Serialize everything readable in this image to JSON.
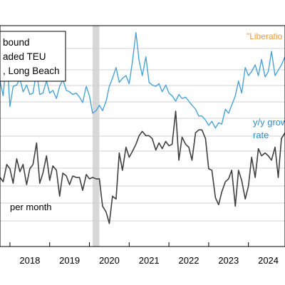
{
  "chart_data": {
    "type": "line",
    "legend_lines": [
      "bound",
      "aded TEU",
      ", Long Beach"
    ],
    "legend_placement": "top-left",
    "annotations": {
      "liberation": "\"Liberatio",
      "growth_line1": "y/y grow",
      "growth_line2": "rate",
      "per_month": "per month"
    },
    "x_ticks": [
      "2018",
      "2019",
      "2020",
      "2021",
      "2022",
      "2023",
      "2024"
    ],
    "xlim": [
      2017.75,
      2024.92
    ],
    "recession_shading": [
      2020.08,
      2020.25
    ],
    "grid": "horizontal",
    "colors": {
      "growth": "#4aa3d6",
      "level": "#404040",
      "shade": "#d8d8d8"
    },
    "series": [
      {
        "name": "y/y growth rate",
        "axis": "left-upper",
        "ylim": [
          -4.5,
          4.5
        ],
        "x": [
          2017.75,
          2017.83,
          2017.92,
          2018.0,
          2018.08,
          2018.17,
          2018.25,
          2018.33,
          2018.42,
          2018.5,
          2018.58,
          2018.67,
          2018.75,
          2018.83,
          2018.92,
          2019.0,
          2019.08,
          2019.17,
          2019.25,
          2019.33,
          2019.42,
          2019.5,
          2019.58,
          2019.67,
          2019.75,
          2019.83,
          2019.92,
          2020.0,
          2020.08,
          2020.17,
          2020.25,
          2020.33,
          2020.42,
          2020.5,
          2020.58,
          2020.67,
          2020.75,
          2020.83,
          2020.92,
          2021.0,
          2021.08,
          2021.17,
          2021.25,
          2021.33,
          2021.42,
          2021.5,
          2021.58,
          2021.67,
          2021.75,
          2021.83,
          2021.92,
          2022.0,
          2022.08,
          2022.17,
          2022.25,
          2022.33,
          2022.42,
          2022.5,
          2022.58,
          2022.67,
          2022.75,
          2022.83,
          2022.92,
          2023.0,
          2023.08,
          2023.17,
          2023.25,
          2023.33,
          2023.42,
          2023.5,
          2023.58,
          2023.67,
          2023.75,
          2023.83,
          2023.92,
          2024.0,
          2024.08,
          2024.17,
          2024.25,
          2024.33,
          2024.42,
          2024.5,
          2024.58,
          2024.67,
          2024.75,
          2024.83,
          2024.92
        ],
        "values": [
          0.6,
          -0.5,
          2.6,
          -1.3,
          0.2,
          0.3,
          0.8,
          -0.2,
          0.3,
          -0.4,
          -0.3,
          1.3,
          -0.4,
          -0.3,
          0.6,
          -0.3,
          -0.1,
          -0.7,
          0.2,
          0.7,
          -0.1,
          -0.2,
          -0.4,
          -0.3,
          -0.6,
          -1.0,
          0.2,
          -0.5,
          -1.8,
          -1.6,
          -1.2,
          -1.6,
          -0.9,
          0.2,
          0.8,
          1.6,
          0.5,
          0.8,
          1.0,
          0.4,
          2.0,
          4.2,
          2.1,
          1.0,
          2.4,
          0.5,
          0.3,
          0.2,
          0.4,
          -0.2,
          0.3,
          -0.3,
          -0.5,
          -0.9,
          -0.4,
          -0.7,
          -0.6,
          -0.9,
          -1.2,
          -1.5,
          -2.0,
          -2.0,
          -2.3,
          -2.7,
          -2.4,
          -2.9,
          -2.5,
          -2.6,
          -1.5,
          -1.8,
          -1.2,
          -0.5,
          0.6,
          -0.3,
          1.6,
          1.0,
          1.3,
          1.8,
          1.0,
          2.2,
          0.9,
          1.3,
          2.8,
          1.0,
          1.4,
          1.8,
          2.4
        ]
      },
      {
        "name": "TEU per month",
        "axis": "left-lower",
        "ylim": [
          -9.0,
          0.4
        ],
        "x": [
          2017.75,
          2017.83,
          2017.92,
          2018.0,
          2018.08,
          2018.17,
          2018.25,
          2018.33,
          2018.42,
          2018.5,
          2018.58,
          2018.67,
          2018.75,
          2018.83,
          2018.92,
          2019.0,
          2019.08,
          2019.17,
          2019.25,
          2019.33,
          2019.42,
          2019.5,
          2019.58,
          2019.67,
          2019.75,
          2019.83,
          2019.92,
          2020.0,
          2020.08,
          2020.17,
          2020.25,
          2020.33,
          2020.42,
          2020.5,
          2020.58,
          2020.67,
          2020.75,
          2020.83,
          2020.92,
          2021.0,
          2021.08,
          2021.17,
          2021.25,
          2021.33,
          2021.42,
          2021.5,
          2021.58,
          2021.67,
          2021.75,
          2021.83,
          2021.92,
          2022.0,
          2022.08,
          2022.17,
          2022.25,
          2022.33,
          2022.42,
          2022.5,
          2022.58,
          2022.67,
          2022.75,
          2022.83,
          2022.92,
          2023.0,
          2023.08,
          2023.17,
          2023.25,
          2023.33,
          2023.42,
          2023.5,
          2023.58,
          2023.67,
          2023.75,
          2023.83,
          2023.92,
          2024.0,
          2024.08,
          2024.17,
          2024.25,
          2024.33,
          2024.42,
          2024.5,
          2024.58,
          2024.67,
          2024.75,
          2024.83,
          2024.92
        ],
        "values": [
          -4.5,
          -4.8,
          -3.6,
          -3.9,
          -4.9,
          -3.2,
          -4.1,
          -3.6,
          -5.0,
          -3.9,
          -3.6,
          -2.1,
          -4.9,
          -4.2,
          -3.0,
          -4.7,
          -3.7,
          -4.0,
          -5.8,
          -4.2,
          -4.4,
          -5.0,
          -4.4,
          -4.5,
          -4.5,
          -5.4,
          -4.3,
          -4.6,
          -4.5,
          -4.6,
          -4.6,
          -6.5,
          -6.9,
          -7.7,
          -5.8,
          -6.0,
          -2.8,
          -4.0,
          -2.4,
          -3.1,
          -2.7,
          -2.2,
          -1.6,
          -1.3,
          -1.6,
          -1.6,
          -1.8,
          -2.6,
          -2.1,
          -2.5,
          -2.0,
          -2.3,
          -2.2,
          0.1,
          -3.3,
          -1.7,
          -2.2,
          -2.4,
          -3.3,
          -1.4,
          -1.2,
          -1.2,
          -1.8,
          -3.9,
          -4.0,
          -5.9,
          -6.4,
          -5.5,
          -4.8,
          -4.6,
          -4.0,
          -6.5,
          -4.0,
          -4.7,
          -6.0,
          -5.1,
          -3.1,
          -4.5,
          -2.5,
          -3.0,
          -2.8,
          -3.0,
          -3.3,
          -2.4,
          -4.5,
          -1.8,
          -1.4
        ]
      }
    ]
  }
}
